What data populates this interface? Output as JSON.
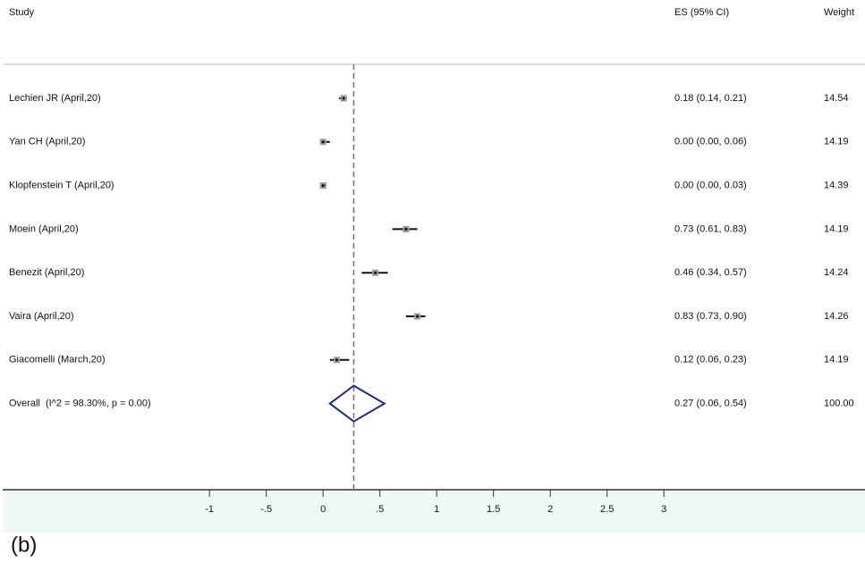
{
  "chart_data": {
    "type": "forest",
    "columns": {
      "study": "Study",
      "es": "ES (95% CI)",
      "weight": "Weight"
    },
    "studies": [
      "Lechien JR (April,20)",
      "Yan CH (April,20)",
      "Klopfenstein T (April,20)",
      "Moein (April,20)",
      "Benezit (April,20)",
      "Vaira (April,20)",
      "Giacomelli (March,20)"
    ],
    "es": [
      0.18,
      0.0,
      0.0,
      0.73,
      0.46,
      0.83,
      0.12
    ],
    "ci_low": [
      0.14,
      0.0,
      0.0,
      0.61,
      0.34,
      0.73,
      0.06
    ],
    "ci_high": [
      0.21,
      0.06,
      0.03,
      0.83,
      0.57,
      0.9,
      0.23
    ],
    "es_labels": [
      "0.18 (0.14, 0.21)",
      "0.00 (0.00, 0.06)",
      "0.00 (0.00, 0.03)",
      "0.73 (0.61, 0.83)",
      "0.46 (0.34, 0.57)",
      "0.83 (0.73, 0.90)",
      "0.12 (0.06, 0.23)"
    ],
    "weights": [
      14.54,
      14.19,
      14.39,
      14.19,
      14.24,
      14.26,
      14.19
    ],
    "weight_labels": [
      "14.54",
      "14.19",
      "14.39",
      "14.19",
      "14.24",
      "14.26",
      "14.19"
    ],
    "overall": {
      "label": "Overall  (I^2 = 98.30%, p = 0.00)",
      "es": 0.27,
      "ci_low": 0.06,
      "ci_high": 0.54,
      "es_label": "0.27 (0.06, 0.54)",
      "weight": 100,
      "weight_label": "100.00"
    },
    "xlim": [
      -2.82,
      4.77
    ],
    "xticks": [
      -1,
      {
        "value": -0.5,
        "label": "-.5"
      },
      0,
      {
        "value": 0.5,
        "label": ".5"
      },
      1,
      1.5,
      2,
      2.5,
      3
    ],
    "marker_color": "#9e9e9e",
    "ci_color": "#111111",
    "diamond_color": "#1f2a8a",
    "ref_line_color": "#a05a78"
  },
  "caption": "(b)"
}
